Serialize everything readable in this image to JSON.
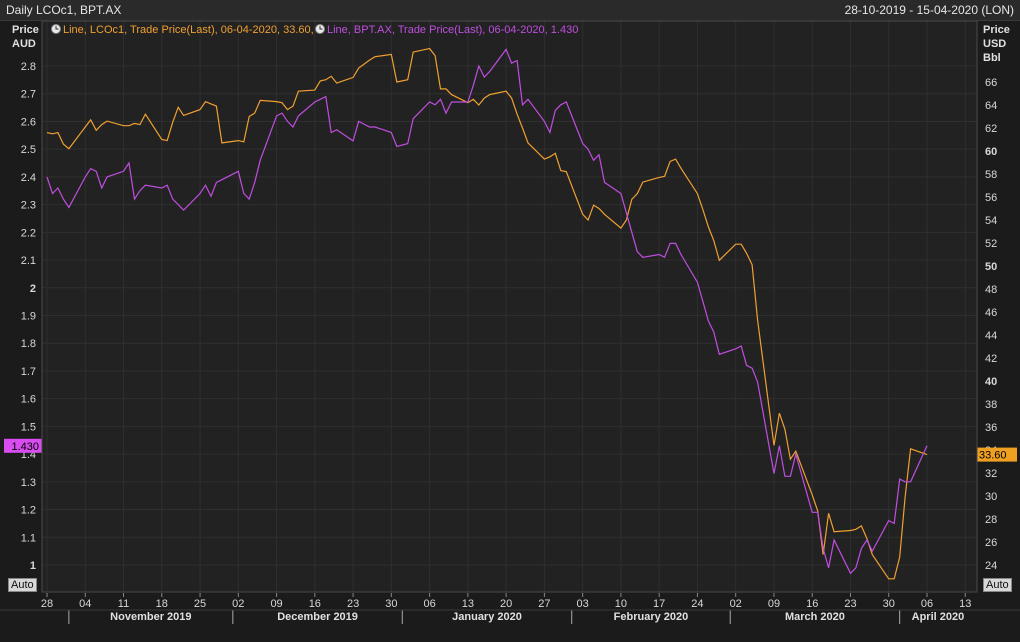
{
  "header": {
    "title": "Daily LCOc1, BPT.AX",
    "date_range": "28-10-2019 - 15-04-2020 (LON)"
  },
  "auto_label": "Auto",
  "chart_data": {
    "type": "line",
    "left_axis": {
      "label_lines": [
        "Price",
        "AUD"
      ],
      "ylim": [
        0.93,
        2.92
      ],
      "ticks": [
        1,
        1.1,
        1.2,
        1.3,
        1.4,
        1.5,
        1.6,
        1.7,
        1.8,
        1.9,
        2,
        2.1,
        2.2,
        2.3,
        2.4,
        2.5,
        2.6,
        2.7,
        2.8
      ]
    },
    "right_axis": {
      "label_lines": [
        "Price",
        "USD",
        "Bbl"
      ],
      "ylim": [
        22.8,
        69.2
      ],
      "ticks": [
        24,
        26,
        28,
        30,
        32,
        34,
        36,
        38,
        40,
        42,
        44,
        46,
        48,
        50,
        52,
        54,
        56,
        58,
        60,
        62,
        64,
        66
      ],
      "bold_ticks": [
        40,
        50,
        60
      ]
    },
    "x_axis": {
      "range": [
        "2019-10-28",
        "2020-04-15"
      ],
      "day_ticks": [
        {
          "date": "2019-10-28",
          "label": "28"
        },
        {
          "date": "2019-11-04",
          "label": "04"
        },
        {
          "date": "2019-11-11",
          "label": "11"
        },
        {
          "date": "2019-11-18",
          "label": "18"
        },
        {
          "date": "2019-11-25",
          "label": "25"
        },
        {
          "date": "2019-12-02",
          "label": "02"
        },
        {
          "date": "2019-12-09",
          "label": "09"
        },
        {
          "date": "2019-12-16",
          "label": "16"
        },
        {
          "date": "2019-12-23",
          "label": "23"
        },
        {
          "date": "2019-12-30",
          "label": "30"
        },
        {
          "date": "2020-01-06",
          "label": "06"
        },
        {
          "date": "2020-01-13",
          "label": "13"
        },
        {
          "date": "2020-01-20",
          "label": "20"
        },
        {
          "date": "2020-01-27",
          "label": "27"
        },
        {
          "date": "2020-02-03",
          "label": "03"
        },
        {
          "date": "2020-02-10",
          "label": "10"
        },
        {
          "date": "2020-02-17",
          "label": "17"
        },
        {
          "date": "2020-02-24",
          "label": "24"
        },
        {
          "date": "2020-03-02",
          "label": "02"
        },
        {
          "date": "2020-03-09",
          "label": "09"
        },
        {
          "date": "2020-03-16",
          "label": "16"
        },
        {
          "date": "2020-03-23",
          "label": "23"
        },
        {
          "date": "2020-03-30",
          "label": "30"
        },
        {
          "date": "2020-04-06",
          "label": "06"
        },
        {
          "date": "2020-04-13",
          "label": "13"
        }
      ],
      "months": [
        {
          "label": "November 2019",
          "start": "2019-11-01",
          "end": "2019-12-01"
        },
        {
          "label": "December 2019",
          "start": "2019-12-01",
          "end": "2020-01-01"
        },
        {
          "label": "January 2020",
          "start": "2020-01-01",
          "end": "2020-02-01"
        },
        {
          "label": "February 2020",
          "start": "2020-02-01",
          "end": "2020-03-01"
        },
        {
          "label": "March 2020",
          "start": "2020-03-01",
          "end": "2020-04-01"
        },
        {
          "label": "April 2020",
          "start": "2020-04-01",
          "end": "2020-04-15"
        }
      ]
    },
    "series": [
      {
        "name": "LCOc1",
        "legend": "Line, LCOc1, Trade Price(Last), 06-04-2020, 33.60, ",
        "color": "#f0a030",
        "axis": "right",
        "last_value": "33.60",
        "points": [
          [
            "2019-10-28",
            61.6
          ],
          [
            "2019-10-29",
            61.5
          ],
          [
            "2019-10-30",
            61.6
          ],
          [
            "2019-10-31",
            60.6
          ],
          [
            "2019-11-01",
            60.2
          ],
          [
            "2019-11-04",
            62.1
          ],
          [
            "2019-11-05",
            62.7
          ],
          [
            "2019-11-06",
            61.8
          ],
          [
            "2019-11-07",
            62.3
          ],
          [
            "2019-11-08",
            62.6
          ],
          [
            "2019-11-11",
            62.2
          ],
          [
            "2019-11-12",
            62.2
          ],
          [
            "2019-11-13",
            62.4
          ],
          [
            "2019-11-14",
            62.3
          ],
          [
            "2019-11-15",
            63.2
          ],
          [
            "2019-11-18",
            61.0
          ],
          [
            "2019-11-19",
            60.9
          ],
          [
            "2019-11-20",
            62.5
          ],
          [
            "2019-11-21",
            63.8
          ],
          [
            "2019-11-22",
            63.1
          ],
          [
            "2019-11-25",
            63.6
          ],
          [
            "2019-11-26",
            64.3
          ],
          [
            "2019-11-27",
            64.1
          ],
          [
            "2019-11-28",
            63.9
          ],
          [
            "2019-11-29",
            60.7
          ],
          [
            "2019-12-02",
            60.9
          ],
          [
            "2019-12-03",
            60.8
          ],
          [
            "2019-12-04",
            63.0
          ],
          [
            "2019-12-05",
            63.3
          ],
          [
            "2019-12-06",
            64.4
          ],
          [
            "2019-12-09",
            64.3
          ],
          [
            "2019-12-10",
            64.2
          ],
          [
            "2019-12-11",
            63.6
          ],
          [
            "2019-12-12",
            63.9
          ],
          [
            "2019-12-13",
            65.2
          ],
          [
            "2019-12-16",
            65.3
          ],
          [
            "2019-12-17",
            66.1
          ],
          [
            "2019-12-18",
            66.2
          ],
          [
            "2019-12-19",
            66.5
          ],
          [
            "2019-12-20",
            65.9
          ],
          [
            "2019-12-23",
            66.4
          ],
          [
            "2019-12-24",
            67.2
          ],
          [
            "2019-12-26",
            67.9
          ],
          [
            "2019-12-27",
            68.2
          ],
          [
            "2019-12-30",
            68.4
          ],
          [
            "2019-12-31",
            66.0
          ],
          [
            "2020-01-02",
            66.2
          ],
          [
            "2020-01-03",
            68.6
          ],
          [
            "2020-01-06",
            68.9
          ],
          [
            "2020-01-07",
            68.3
          ],
          [
            "2020-01-08",
            65.4
          ],
          [
            "2020-01-09",
            65.4
          ],
          [
            "2020-01-10",
            64.9
          ],
          [
            "2020-01-13",
            64.2
          ],
          [
            "2020-01-14",
            64.5
          ],
          [
            "2020-01-15",
            64.0
          ],
          [
            "2020-01-16",
            64.6
          ],
          [
            "2020-01-17",
            64.9
          ],
          [
            "2020-01-20",
            65.2
          ],
          [
            "2020-01-21",
            64.6
          ],
          [
            "2020-01-22",
            63.2
          ],
          [
            "2020-01-23",
            62.0
          ],
          [
            "2020-01-24",
            60.7
          ],
          [
            "2020-01-27",
            59.3
          ],
          [
            "2020-01-28",
            59.5
          ],
          [
            "2020-01-29",
            59.8
          ],
          [
            "2020-01-30",
            58.3
          ],
          [
            "2020-01-31",
            58.2
          ],
          [
            "2020-02-03",
            54.5
          ],
          [
            "2020-02-04",
            54.0
          ],
          [
            "2020-02-05",
            55.3
          ],
          [
            "2020-02-06",
            55.0
          ],
          [
            "2020-02-07",
            54.5
          ],
          [
            "2020-02-10",
            53.3
          ],
          [
            "2020-02-11",
            54.0
          ],
          [
            "2020-02-12",
            55.8
          ],
          [
            "2020-02-13",
            56.3
          ],
          [
            "2020-02-14",
            57.3
          ],
          [
            "2020-02-17",
            57.7
          ],
          [
            "2020-02-18",
            57.8
          ],
          [
            "2020-02-19",
            59.1
          ],
          [
            "2020-02-20",
            59.3
          ],
          [
            "2020-02-21",
            58.5
          ],
          [
            "2020-02-24",
            56.3
          ],
          [
            "2020-02-25",
            54.9
          ],
          [
            "2020-02-26",
            53.4
          ],
          [
            "2020-02-27",
            52.2
          ],
          [
            "2020-02-28",
            50.5
          ],
          [
            "2020-03-02",
            51.9
          ],
          [
            "2020-03-03",
            51.9
          ],
          [
            "2020-03-04",
            51.1
          ],
          [
            "2020-03-05",
            50.1
          ],
          [
            "2020-03-06",
            45.3
          ],
          [
            "2020-03-09",
            34.4
          ],
          [
            "2020-03-10",
            37.2
          ],
          [
            "2020-03-11",
            35.8
          ],
          [
            "2020-03-12",
            33.2
          ],
          [
            "2020-03-13",
            33.9
          ],
          [
            "2020-03-16",
            30.1
          ],
          [
            "2020-03-17",
            28.7
          ],
          [
            "2020-03-18",
            24.9
          ],
          [
            "2020-03-19",
            28.5
          ],
          [
            "2020-03-20",
            26.9
          ],
          [
            "2020-03-23",
            27.0
          ],
          [
            "2020-03-24",
            27.1
          ],
          [
            "2020-03-25",
            27.4
          ],
          [
            "2020-03-26",
            26.3
          ],
          [
            "2020-03-27",
            24.9
          ],
          [
            "2020-03-30",
            22.8
          ],
          [
            "2020-03-31",
            22.8
          ],
          [
            "2020-04-01",
            24.7
          ],
          [
            "2020-04-02",
            29.9
          ],
          [
            "2020-04-03",
            34.1
          ],
          [
            "2020-04-06",
            33.6
          ]
        ]
      },
      {
        "name": "BPT.AX",
        "legend": "Line, BPT.AX, Trade Price(Last), 06-04-2020, 1.430",
        "color": "#c04ee0",
        "axis": "left",
        "last_value": "1.430",
        "points": [
          [
            "2019-10-28",
            2.4
          ],
          [
            "2019-10-29",
            2.34
          ],
          [
            "2019-10-30",
            2.36
          ],
          [
            "2019-10-31",
            2.32
          ],
          [
            "2019-11-01",
            2.29
          ],
          [
            "2019-11-04",
            2.4
          ],
          [
            "2019-11-05",
            2.43
          ],
          [
            "2019-11-06",
            2.42
          ],
          [
            "2019-11-07",
            2.36
          ],
          [
            "2019-11-08",
            2.4
          ],
          [
            "2019-11-11",
            2.42
          ],
          [
            "2019-11-12",
            2.45
          ],
          [
            "2019-11-13",
            2.32
          ],
          [
            "2019-11-14",
            2.35
          ],
          [
            "2019-11-15",
            2.37
          ],
          [
            "2019-11-18",
            2.36
          ],
          [
            "2019-11-19",
            2.37
          ],
          [
            "2019-11-20",
            2.32
          ],
          [
            "2019-11-21",
            2.3
          ],
          [
            "2019-11-22",
            2.28
          ],
          [
            "2019-11-25",
            2.34
          ],
          [
            "2019-11-26",
            2.37
          ],
          [
            "2019-11-27",
            2.33
          ],
          [
            "2019-11-28",
            2.38
          ],
          [
            "2019-11-29",
            2.39
          ],
          [
            "2019-12-02",
            2.42
          ],
          [
            "2019-12-03",
            2.34
          ],
          [
            "2019-12-04",
            2.32
          ],
          [
            "2019-12-05",
            2.38
          ],
          [
            "2019-12-06",
            2.46
          ],
          [
            "2019-12-09",
            2.62
          ],
          [
            "2019-12-10",
            2.63
          ],
          [
            "2019-12-11",
            2.6
          ],
          [
            "2019-12-12",
            2.58
          ],
          [
            "2019-12-13",
            2.62
          ],
          [
            "2019-12-16",
            2.67
          ],
          [
            "2019-12-17",
            2.68
          ],
          [
            "2019-12-18",
            2.69
          ],
          [
            "2019-12-19",
            2.56
          ],
          [
            "2019-12-20",
            2.57
          ],
          [
            "2019-12-23",
            2.53
          ],
          [
            "2019-12-24",
            2.6
          ],
          [
            "2019-12-26",
            2.58
          ],
          [
            "2019-12-27",
            2.58
          ],
          [
            "2019-12-30",
            2.56
          ],
          [
            "2019-12-31",
            2.51
          ],
          [
            "2020-01-02",
            2.52
          ],
          [
            "2020-01-03",
            2.61
          ],
          [
            "2020-01-06",
            2.67
          ],
          [
            "2020-01-07",
            2.66
          ],
          [
            "2020-01-08",
            2.68
          ],
          [
            "2020-01-09",
            2.63
          ],
          [
            "2020-01-10",
            2.67
          ],
          [
            "2020-01-13",
            2.67
          ],
          [
            "2020-01-14",
            2.73
          ],
          [
            "2020-01-15",
            2.8
          ],
          [
            "2020-01-16",
            2.76
          ],
          [
            "2020-01-17",
            2.78
          ],
          [
            "2020-01-20",
            2.86
          ],
          [
            "2020-01-21",
            2.81
          ],
          [
            "2020-01-22",
            2.82
          ],
          [
            "2020-01-23",
            2.66
          ],
          [
            "2020-01-24",
            2.68
          ],
          [
            "2020-01-27",
            2.6
          ],
          [
            "2020-01-28",
            2.56
          ],
          [
            "2020-01-29",
            2.64
          ],
          [
            "2020-01-30",
            2.66
          ],
          [
            "2020-01-31",
            2.67
          ],
          [
            "2020-02-03",
            2.52
          ],
          [
            "2020-02-04",
            2.5
          ],
          [
            "2020-02-05",
            2.46
          ],
          [
            "2020-02-06",
            2.48
          ],
          [
            "2020-02-07",
            2.38
          ],
          [
            "2020-02-10",
            2.34
          ],
          [
            "2020-02-11",
            2.27
          ],
          [
            "2020-02-12",
            2.2
          ],
          [
            "2020-02-13",
            2.13
          ],
          [
            "2020-02-14",
            2.11
          ],
          [
            "2020-02-17",
            2.12
          ],
          [
            "2020-02-18",
            2.11
          ],
          [
            "2020-02-19",
            2.16
          ],
          [
            "2020-02-20",
            2.16
          ],
          [
            "2020-02-21",
            2.12
          ],
          [
            "2020-02-24",
            2.02
          ],
          [
            "2020-02-25",
            1.95
          ],
          [
            "2020-02-26",
            1.88
          ],
          [
            "2020-02-27",
            1.84
          ],
          [
            "2020-02-28",
            1.76
          ],
          [
            "2020-03-02",
            1.78
          ],
          [
            "2020-03-03",
            1.79
          ],
          [
            "2020-03-04",
            1.72
          ],
          [
            "2020-03-05",
            1.71
          ],
          [
            "2020-03-06",
            1.66
          ],
          [
            "2020-03-09",
            1.33
          ],
          [
            "2020-03-10",
            1.43
          ],
          [
            "2020-03-11",
            1.32
          ],
          [
            "2020-03-12",
            1.32
          ],
          [
            "2020-03-13",
            1.4
          ],
          [
            "2020-03-16",
            1.19
          ],
          [
            "2020-03-17",
            1.19
          ],
          [
            "2020-03-18",
            1.06
          ],
          [
            "2020-03-19",
            0.99
          ],
          [
            "2020-03-20",
            1.09
          ],
          [
            "2020-03-23",
            0.97
          ],
          [
            "2020-03-24",
            0.99
          ],
          [
            "2020-03-25",
            1.06
          ],
          [
            "2020-03-26",
            1.09
          ],
          [
            "2020-03-27",
            1.05
          ],
          [
            "2020-03-30",
            1.16
          ],
          [
            "2020-03-31",
            1.15
          ],
          [
            "2020-04-01",
            1.31
          ],
          [
            "2020-04-02",
            1.3
          ],
          [
            "2020-04-03",
            1.3
          ],
          [
            "2020-04-06",
            1.43
          ]
        ]
      }
    ]
  }
}
